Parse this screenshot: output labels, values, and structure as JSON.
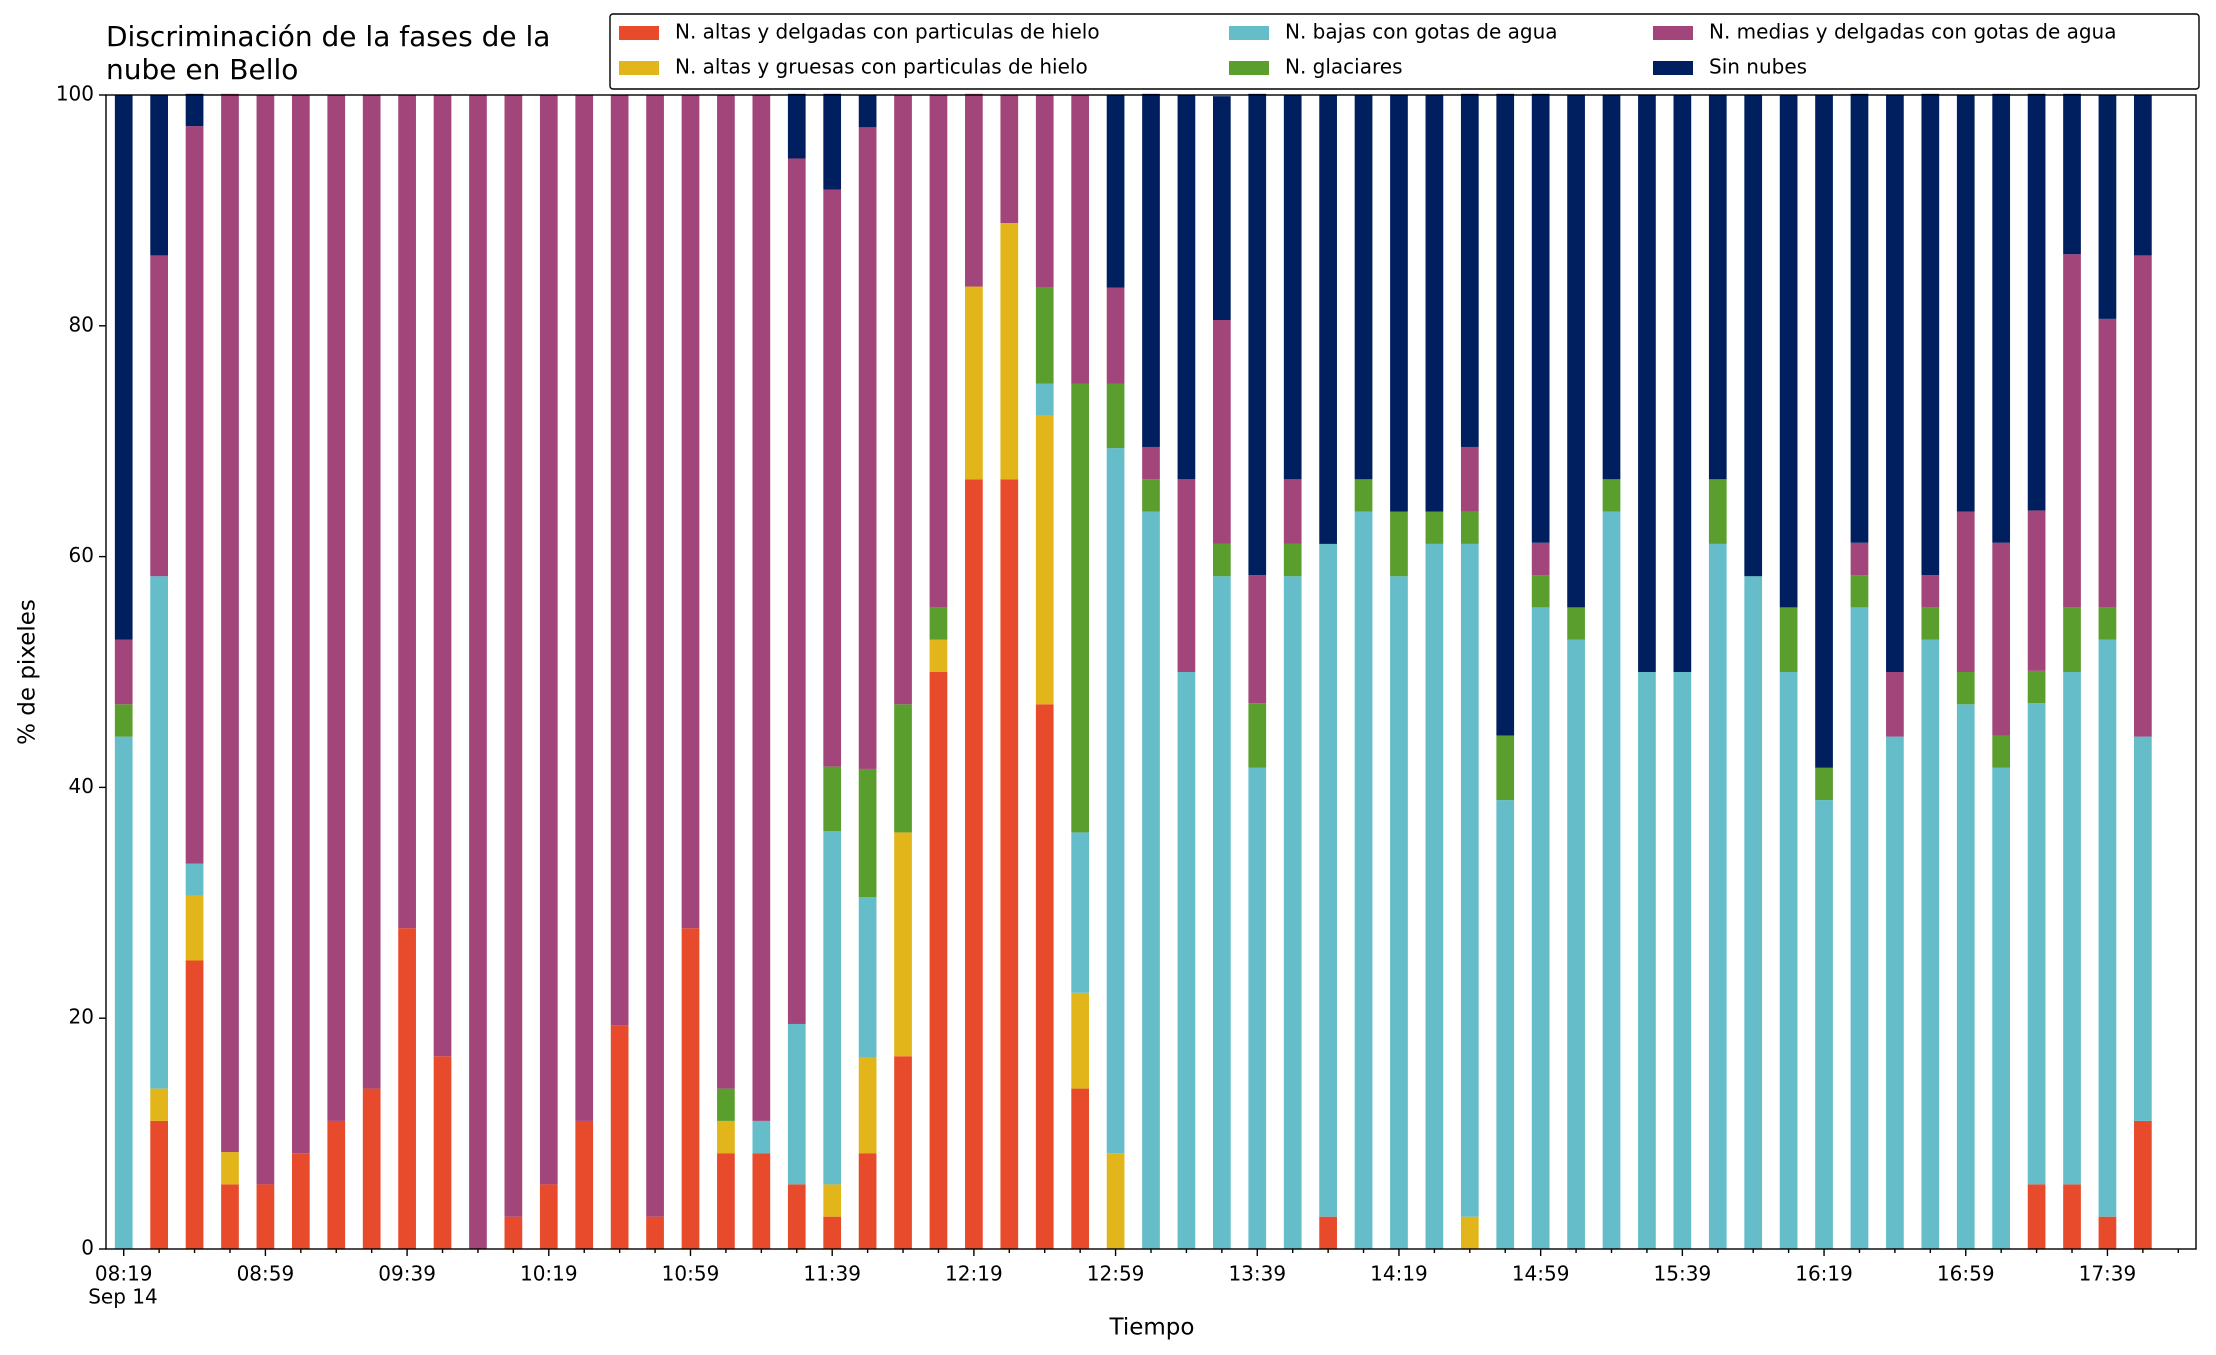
{
  "chart_data": {
    "type": "stacked_bar",
    "title": "Discriminación de la fases de la\nnube en Bello",
    "x_label": "Tiempo",
    "y_label": "% de pixeles",
    "date_label": "Sep 14",
    "categories": [
      "08:19",
      null,
      null,
      null,
      "08:59",
      null,
      null,
      null,
      "09:39",
      null,
      null,
      null,
      "10:19",
      null,
      null,
      null,
      "10:59",
      null,
      null,
      null,
      "11:39",
      null,
      null,
      null,
      "12:19",
      null,
      null,
      null,
      "12:59",
      null,
      null,
      null,
      "13:39",
      null,
      null,
      null,
      "14:19",
      null,
      null,
      null,
      "14:59",
      null,
      null,
      null,
      "15:39",
      null,
      null,
      null,
      "16:19",
      null,
      null,
      null,
      "16:59",
      null,
      null,
      null,
      "17:39",
      null
    ],
    "ylim": [
      0,
      100
    ],
    "yticks": [
      0,
      20,
      40,
      60,
      80,
      100
    ],
    "legend": "top-right",
    "series": [
      {
        "name": "N. altas y delgadas con particulas de hielo",
        "color": "#e84a2c",
        "values": [
          0,
          11.1,
          25,
          5.6,
          5.6,
          8.3,
          11.1,
          13.9,
          27.8,
          16.7,
          0,
          2.8,
          5.6,
          11.1,
          19.4,
          2.8,
          27.8,
          8.3,
          8.3,
          5.6,
          2.8,
          8.3,
          16.7,
          50,
          66.7,
          66.7,
          47.2,
          13.9,
          0,
          0,
          0,
          0,
          0,
          0,
          2.8,
          0,
          0,
          0,
          0,
          0,
          0,
          0,
          0,
          0,
          0,
          0,
          0,
          0,
          0,
          0,
          0,
          0,
          0,
          0,
          5.6,
          5.6,
          2.8,
          11.1
        ]
      },
      {
        "name": "N. altas y gruesas con particulas de hielo",
        "color": "#e2b51a",
        "values": [
          0,
          2.8,
          5.6,
          2.8,
          0,
          0,
          0,
          0,
          0,
          0,
          0,
          0,
          0,
          0,
          0,
          0,
          0,
          2.8,
          0,
          0,
          2.8,
          8.3,
          19.4,
          2.8,
          16.7,
          22.2,
          25,
          8.3,
          8.3,
          0,
          0,
          0,
          0,
          0,
          0,
          0,
          0,
          0,
          2.8,
          0,
          0,
          0,
          0,
          0,
          0,
          0,
          0,
          0,
          0,
          0,
          0,
          0,
          0,
          0,
          0,
          0,
          0,
          0
        ]
      },
      {
        "name": "N. bajas con gotas de agua",
        "color": "#64bdc9",
        "values": [
          44.4,
          44.4,
          2.8,
          0,
          0,
          0,
          0,
          0,
          0,
          0,
          0,
          0,
          0,
          0,
          0,
          0,
          0,
          0,
          2.8,
          13.9,
          30.6,
          13.9,
          0,
          0,
          0,
          0,
          2.8,
          13.9,
          61.1,
          63.9,
          50,
          58.3,
          41.7,
          58.3,
          58.3,
          63.9,
          58.3,
          61.1,
          58.3,
          38.9,
          55.6,
          52.8,
          63.9,
          50,
          50,
          61.1,
          58.3,
          50,
          38.9,
          55.6,
          44.4,
          52.8,
          47.2,
          41.7,
          41.7,
          44.4,
          50,
          33.3
        ]
      },
      {
        "name": "N. glaciares",
        "color": "#5a9e2e",
        "values": [
          2.8,
          0,
          0,
          0,
          0,
          0,
          0,
          0,
          0,
          0,
          0,
          0,
          0,
          0,
          0,
          0,
          0,
          2.8,
          0,
          0,
          5.6,
          11.1,
          11.1,
          2.8,
          0,
          0,
          8.3,
          38.9,
          5.6,
          2.8,
          0,
          2.8,
          5.6,
          2.8,
          0,
          2.8,
          5.6,
          2.8,
          2.8,
          5.6,
          2.8,
          2.8,
          2.8,
          0,
          0,
          5.6,
          0,
          5.6,
          2.8,
          2.8,
          0,
          2.8,
          2.8,
          2.8,
          2.8,
          5.6,
          2.8,
          0
        ]
      },
      {
        "name": "N. medias y delgadas con gotas de agua",
        "color": "#a1457a",
        "values": [
          5.6,
          27.8,
          63.9,
          91.7,
          94.4,
          91.7,
          88.9,
          86.1,
          72.2,
          83.3,
          100,
          97.2,
          94.4,
          88.9,
          80.6,
          97.2,
          72.2,
          86.1,
          88.9,
          75,
          50,
          55.6,
          52.8,
          44.4,
          16.7,
          11.1,
          16.7,
          25,
          8.3,
          2.8,
          16.7,
          19.4,
          11.1,
          5.6,
          0,
          0,
          0,
          0,
          5.6,
          0,
          2.8,
          0,
          0,
          0,
          0,
          0,
          0,
          0,
          0,
          2.8,
          5.6,
          2.8,
          13.9,
          16.7,
          13.9,
          30.6,
          25,
          41.7
        ]
      },
      {
        "name": "Sin nubes",
        "color": "#001f5f",
        "values": [
          47.2,
          13.9,
          2.8,
          0,
          0,
          0,
          0,
          0,
          0,
          0,
          0,
          0,
          0,
          0,
          0,
          0,
          0,
          0,
          0,
          5.6,
          8.3,
          2.8,
          0,
          0,
          0,
          0,
          0,
          0,
          16.7,
          30.6,
          33.3,
          19.4,
          41.7,
          33.3,
          38.9,
          33.3,
          36.1,
          36.1,
          30.6,
          55.6,
          38.9,
          44.4,
          33.3,
          50,
          50,
          33.3,
          41.7,
          44.4,
          58.3,
          38.9,
          50,
          41.7,
          36.1,
          38.9,
          36.1,
          13.9,
          19.4,
          13.9
        ]
      }
    ]
  }
}
